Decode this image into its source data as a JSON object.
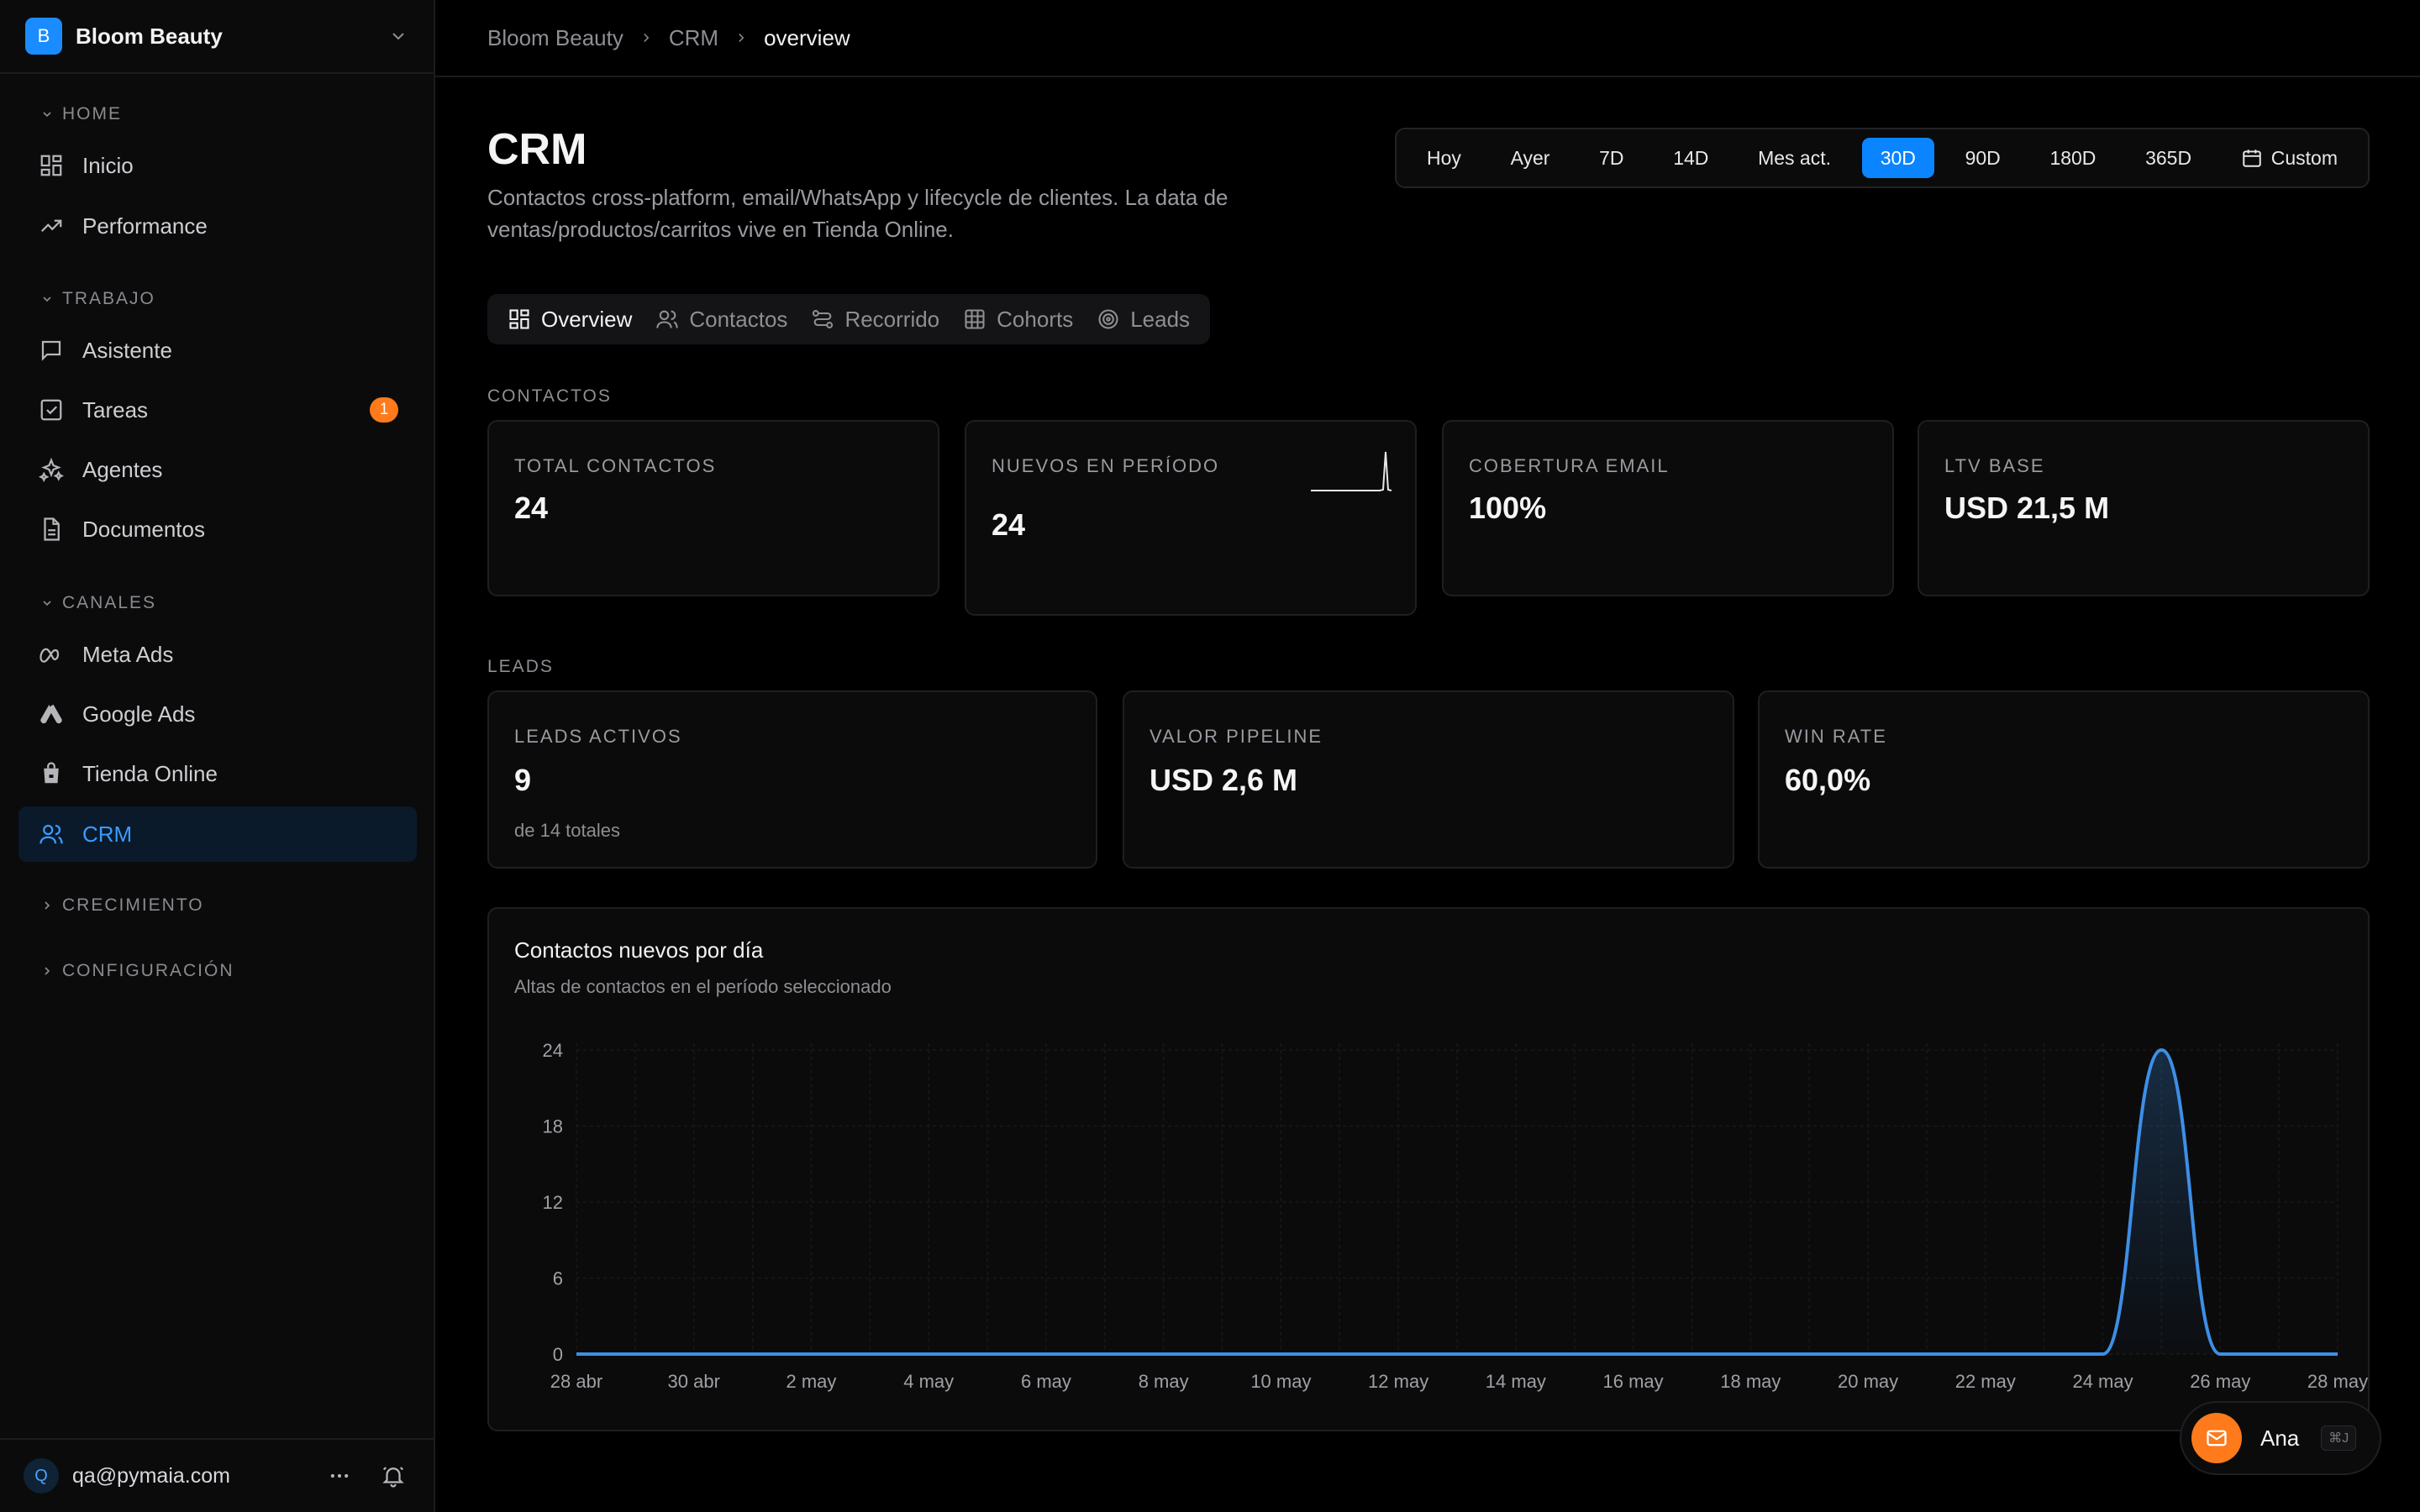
{
  "workspace": {
    "initial": "B",
    "name": "Bloom Beauty"
  },
  "sidebar": {
    "sections": [
      {
        "label": "HOME",
        "items": [
          {
            "label": "Inicio",
            "icon": "grid-icon"
          },
          {
            "label": "Performance",
            "icon": "trending-up-icon"
          }
        ]
      },
      {
        "label": "TRABAJO",
        "items": [
          {
            "label": "Asistente",
            "icon": "chat-icon"
          },
          {
            "label": "Tareas",
            "icon": "checkbox-icon",
            "badge": "1"
          },
          {
            "label": "Agentes",
            "icon": "sparkles-icon"
          },
          {
            "label": "Documentos",
            "icon": "document-icon"
          }
        ]
      },
      {
        "label": "CANALES",
        "items": [
          {
            "label": "Meta Ads",
            "icon": "meta-icon"
          },
          {
            "label": "Google Ads",
            "icon": "google-ads-icon"
          },
          {
            "label": "Tienda Online",
            "icon": "shopping-bag-icon"
          },
          {
            "label": "CRM",
            "icon": "users-icon",
            "active": true
          }
        ]
      },
      {
        "label": "CRECIMIENTO",
        "collapsed": true
      },
      {
        "label": "CONFIGURACIÓN",
        "collapsed": true
      }
    ]
  },
  "user": {
    "initial": "Q",
    "email": "qa@pymaia.com"
  },
  "breadcrumb": [
    "Bloom Beauty",
    "CRM",
    "overview"
  ],
  "page": {
    "title": "CRM",
    "description": "Contactos cross-platform, email/WhatsApp y lifecycle de clientes. La data de ventas/productos/carritos vive en Tienda Online."
  },
  "ranges": [
    "Hoy",
    "Ayer",
    "7D",
    "14D",
    "Mes act.",
    "30D",
    "90D",
    "180D",
    "365D",
    "Custom"
  ],
  "active_range": "30D",
  "tabs": [
    "Overview",
    "Contactos",
    "Recorrido",
    "Cohorts",
    "Leads"
  ],
  "active_tab": "Overview",
  "contactos": {
    "label": "CONTACTOS",
    "cards": [
      {
        "label": "TOTAL CONTACTOS",
        "value": "24"
      },
      {
        "label": "NUEVOS EN PERÍODO",
        "value": "24"
      },
      {
        "label": "COBERTURA EMAIL",
        "value": "100%"
      },
      {
        "label": "LTV BASE",
        "value": "USD 21,5 M"
      }
    ]
  },
  "leads": {
    "label": "LEADS",
    "cards": [
      {
        "label": "LEADS ACTIVOS",
        "value": "9",
        "sub": "de 14 totales"
      },
      {
        "label": "VALOR PIPELINE",
        "value": "USD 2,6 M"
      },
      {
        "label": "WIN RATE",
        "value": "60,0%"
      }
    ]
  },
  "chart": {
    "title": "Contactos nuevos por día",
    "subtitle": "Altas de contactos en el período seleccionado"
  },
  "chart_data": {
    "type": "area",
    "x": [
      "28 abr",
      "29 abr",
      "30 abr",
      "1 may",
      "2 may",
      "3 may",
      "4 may",
      "5 may",
      "6 may",
      "7 may",
      "8 may",
      "9 may",
      "10 may",
      "11 may",
      "12 may",
      "13 may",
      "14 may",
      "15 may",
      "16 may",
      "17 may",
      "18 may",
      "19 may",
      "20 may",
      "21 may",
      "22 may",
      "23 may",
      "24 may",
      "25 may",
      "26 may",
      "27 may",
      "28 may"
    ],
    "series": [
      {
        "values": [
          0,
          0,
          0,
          0,
          0,
          0,
          0,
          0,
          0,
          0,
          0,
          0,
          0,
          0,
          0,
          0,
          0,
          0,
          0,
          0,
          0,
          0,
          0,
          0,
          0,
          0,
          0,
          24,
          0,
          0,
          0
        ]
      }
    ],
    "x_tick_labels": [
      "28 abr",
      "30 abr",
      "2 may",
      "4 may",
      "6 may",
      "8 may",
      "10 may",
      "12 may",
      "14 may",
      "16 may",
      "18 may",
      "20 may",
      "22 may",
      "24 may",
      "26 may",
      "28 may"
    ],
    "y_ticks": [
      0,
      6,
      12,
      18,
      24
    ],
    "ylim": [
      0,
      24
    ],
    "grid": true,
    "line_color": "#3d8fe6"
  },
  "assistant": {
    "name": "Ana",
    "shortcut": "⌘J"
  }
}
